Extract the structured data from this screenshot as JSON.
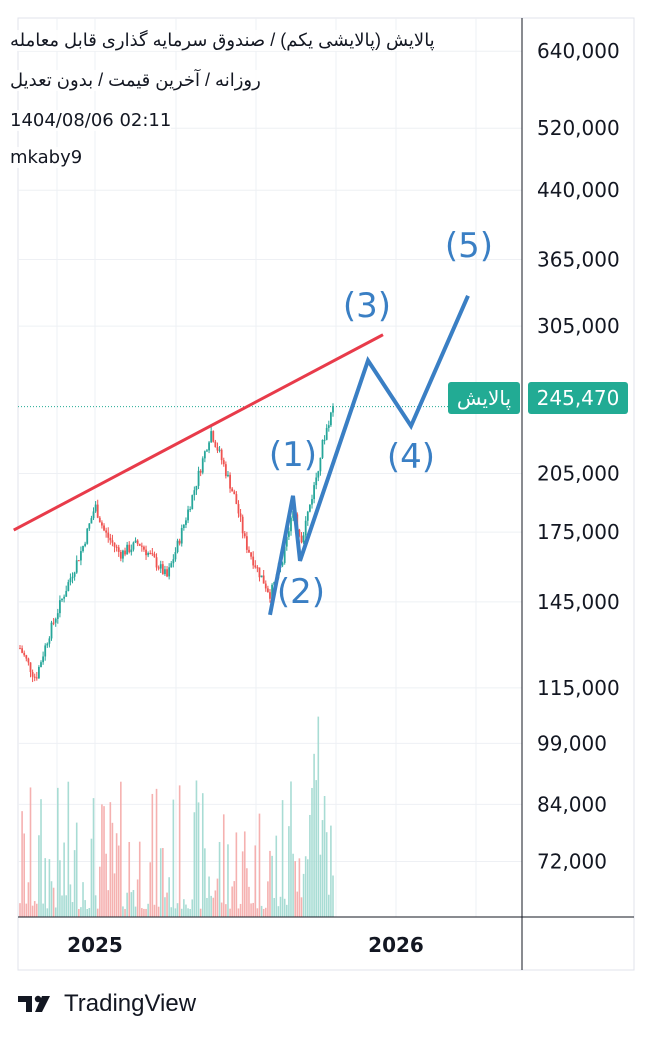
{
  "header": {
    "title": "پالایش (پالایشی یکم) / صندوق سرمایه گذاری قابل معامله",
    "subtitle": "روزانه / آخرین قیمت / بدون تعدیل",
    "datetime": "1404/08/06 02:11",
    "author": "mkaby9"
  },
  "price_tag": {
    "symbol": "پالایش",
    "value": "245,470"
  },
  "wave_labels": [
    "(1)",
    "(2)",
    "(3)",
    "(4)",
    "(5)"
  ],
  "footer": {
    "brand": "TradingView"
  },
  "colors": {
    "up": "#26a69a",
    "down": "#ef5350",
    "trendline": "#e83b4a",
    "wave": "#3a7fc4",
    "tag": "#22ab94"
  },
  "chart_data": {
    "type": "candlestick",
    "y_scale": "log",
    "ylim": [
      62000,
      700000
    ],
    "y_ticks": [
      {
        "value": 640000,
        "label": "640,000"
      },
      {
        "value": 520000,
        "label": "520,000"
      },
      {
        "value": 440000,
        "label": "440,000"
      },
      {
        "value": 365000,
        "label": "365,000"
      },
      {
        "value": 305000,
        "label": "305,000"
      },
      {
        "value": 205000,
        "label": "205,000"
      },
      {
        "value": 175000,
        "label": "175,000"
      },
      {
        "value": 145000,
        "label": "145,000"
      },
      {
        "value": 115000,
        "label": "115,000"
      },
      {
        "value": 99000,
        "label": "99,000"
      },
      {
        "value": 84000,
        "label": "84,000"
      },
      {
        "value": 72000,
        "label": "72,000"
      }
    ],
    "x_ticks": [
      "2025",
      "2026"
    ],
    "last_price": 245470,
    "price_anchors": [
      {
        "t": 0.0,
        "v": 128000
      },
      {
        "t": 0.05,
        "v": 118000
      },
      {
        "t": 0.09,
        "v": 132000
      },
      {
        "t": 0.14,
        "v": 148000
      },
      {
        "t": 0.2,
        "v": 168000
      },
      {
        "t": 0.24,
        "v": 188000
      },
      {
        "t": 0.27,
        "v": 175000
      },
      {
        "t": 0.32,
        "v": 165000
      },
      {
        "t": 0.38,
        "v": 170000
      },
      {
        "t": 0.43,
        "v": 162000
      },
      {
        "t": 0.47,
        "v": 155000
      },
      {
        "t": 0.51,
        "v": 172000
      },
      {
        "t": 0.56,
        "v": 198000
      },
      {
        "t": 0.61,
        "v": 230000
      },
      {
        "t": 0.65,
        "v": 210000
      },
      {
        "t": 0.69,
        "v": 190000
      },
      {
        "t": 0.72,
        "v": 170000
      },
      {
        "t": 0.76,
        "v": 158000
      },
      {
        "t": 0.8,
        "v": 148000
      },
      {
        "t": 0.84,
        "v": 162000
      },
      {
        "t": 0.87,
        "v": 185000
      },
      {
        "t": 0.9,
        "v": 172000
      },
      {
        "t": 0.94,
        "v": 198000
      },
      {
        "t": 0.97,
        "v": 225000
      },
      {
        "t": 1.0,
        "v": 245470
      }
    ],
    "trendline": [
      {
        "t": -0.02,
        "v": 176000
      },
      {
        "t": 1.16,
        "v": 298000
      }
    ],
    "wave_path": [
      {
        "label": "(1)",
        "v": 193000
      },
      {
        "label": "(2)",
        "v": 162000
      },
      {
        "label": "(3)",
        "v": 278000
      },
      {
        "label": "(4)",
        "v": 233000
      },
      {
        "label": "(5)",
        "v": 331000
      }
    ],
    "wave_start": 140000
  }
}
